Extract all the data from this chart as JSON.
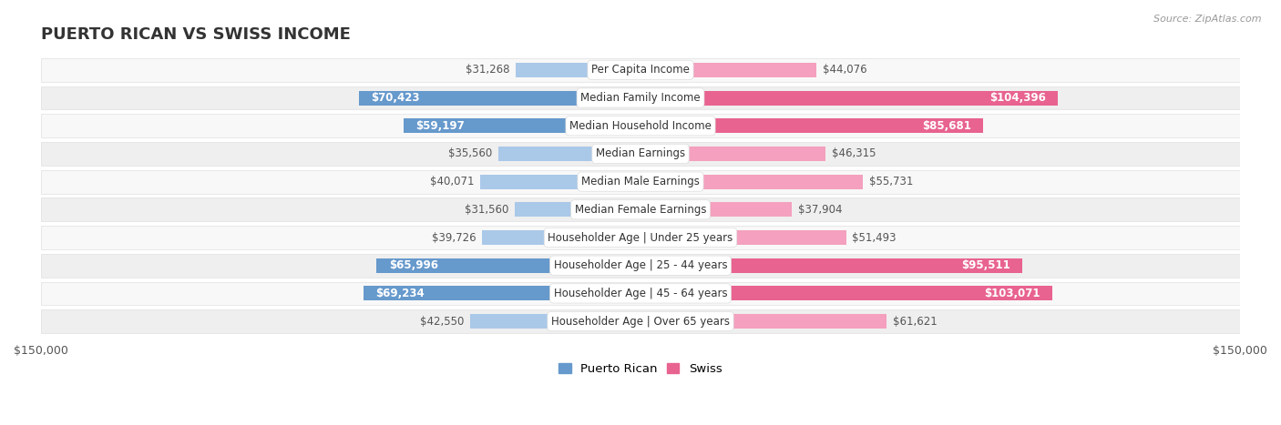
{
  "title": "PUERTO RICAN VS SWISS INCOME",
  "source": "Source: ZipAtlas.com",
  "categories": [
    "Per Capita Income",
    "Median Family Income",
    "Median Household Income",
    "Median Earnings",
    "Median Male Earnings",
    "Median Female Earnings",
    "Householder Age | Under 25 years",
    "Householder Age | 25 - 44 years",
    "Householder Age | 45 - 64 years",
    "Householder Age | Over 65 years"
  ],
  "puerto_rican": [
    31268,
    70423,
    59197,
    35560,
    40071,
    31560,
    39726,
    65996,
    69234,
    42550
  ],
  "swiss": [
    44076,
    104396,
    85681,
    46315,
    55731,
    37904,
    51493,
    95511,
    103071,
    61621
  ],
  "puerto_rican_labels": [
    "$31,268",
    "$70,423",
    "$59,197",
    "$35,560",
    "$40,071",
    "$31,560",
    "$39,726",
    "$65,996",
    "$69,234",
    "$42,550"
  ],
  "swiss_labels": [
    "$44,076",
    "$104,396",
    "$85,681",
    "$46,315",
    "$55,731",
    "$37,904",
    "$51,493",
    "$95,511",
    "$103,071",
    "$61,621"
  ],
  "max_val": 150000,
  "pr_color_light": "#aac8e8",
  "pr_color_dark": "#6699cc",
  "swiss_color_light": "#f4a0be",
  "swiss_color_dark": "#e8638f",
  "pr_threshold": 55000,
  "sw_threshold": 80000,
  "row_colors": [
    "#f8f8f8",
    "#efefef"
  ],
  "row_border": "#e0e0e0",
  "bg_color": "#ffffff",
  "title_color": "#333333",
  "label_color_outside": "#555555",
  "label_color_inside": "#ffffff",
  "title_fontsize": 13,
  "label_fontsize": 8.5,
  "cat_fontsize": 8.5,
  "axis_fontsize": 9
}
